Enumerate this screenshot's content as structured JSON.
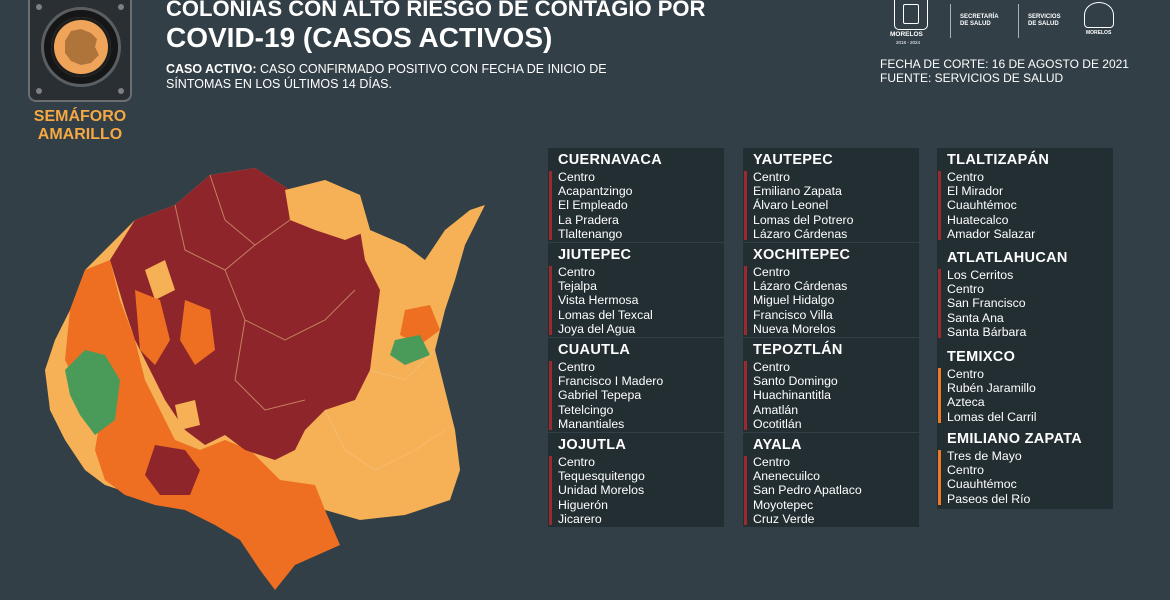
{
  "header": {
    "title_line1": "Colonias con alto riesgo de contagio por",
    "title_line2": "COVID-19 (casos activos)",
    "definition_label": "Caso activo:",
    "definition_text": "caso confirmado positivo con fecha de inicio de síntomas en los últimos 14 días.",
    "cutoff": "Fecha de corte: 16 de agosto de 2021",
    "source": "Fuente: Servicios de Salud"
  },
  "semaforo": {
    "label_line1": "Semáforo",
    "label_line2": "amarillo",
    "color": "#f5a843"
  },
  "logos": {
    "morelos": "Morelos",
    "morelos_years": "2018 - 2024",
    "secretaria": "Secretaría de Salud",
    "servicios": "Servicios de Salud",
    "flower": "Morelos"
  },
  "colors": {
    "dark_red": "#8e252b",
    "orange": "#ee6f22",
    "light_orange": "#f6b055",
    "green": "#4a9a5a",
    "background": "#323f46"
  },
  "municipalities": [
    {
      "name": "Cuernavaca",
      "risk": "red",
      "colonias": [
        "Centro",
        "Acapantzingo",
        "El Empleado",
        "La Pradera",
        "Tlaltenango"
      ]
    },
    {
      "name": "Jiutepec",
      "risk": "red",
      "colonias": [
        "Centro",
        "Tejalpa",
        "Vista Hermosa",
        "Lomas del Texcal",
        "Joya del Agua"
      ]
    },
    {
      "name": "Cuautla",
      "risk": "red",
      "colonias": [
        "Centro",
        "Francisco I Madero",
        "Gabriel Tepepa",
        "Tetelcingo",
        "Manantiales"
      ]
    },
    {
      "name": "Jojutla",
      "risk": "red",
      "colonias": [
        "Centro",
        "Tequesquitengo",
        "Unidad Morelos",
        "Higuerón",
        "Jicarero"
      ]
    },
    {
      "name": "Yautepec",
      "risk": "red",
      "colonias": [
        "Centro",
        "Emiliano Zapata",
        "Álvaro Leonel",
        "Lomas del Potrero",
        "Lázaro Cárdenas"
      ]
    },
    {
      "name": "Xochitepec",
      "risk": "red",
      "colonias": [
        "Centro",
        "Lázaro Cárdenas",
        "Miguel Hidalgo",
        "Francisco Villa",
        "Nueva Morelos"
      ]
    },
    {
      "name": "Tepoztlán",
      "risk": "red",
      "colonias": [
        "Centro",
        "Santo Domingo",
        "Huachinantitla",
        "Amatlán",
        "Ocotitlán"
      ]
    },
    {
      "name": "Ayala",
      "risk": "red",
      "colonias": [
        "Centro",
        "Anenecuilco",
        "San Pedro Apatlaco",
        "Moyotepec",
        "Cruz Verde"
      ]
    },
    {
      "name": "Tlaltizapán",
      "risk": "red",
      "colonias": [
        "Centro",
        "El Mirador",
        "Cuauhtémoc",
        "Huatecalco",
        "Amador Salazar"
      ]
    },
    {
      "name": "Atlatlahucan",
      "risk": "red",
      "colonias": [
        "Los Cerritos",
        "Centro",
        "San Francisco",
        "Santa Ana",
        "Santa Bárbara"
      ]
    },
    {
      "name": "Temixco",
      "risk": "orange",
      "colonias": [
        "Centro",
        "Rubén Jaramillo",
        "Azteca",
        "Lomas del Carril"
      ]
    },
    {
      "name": "Emiliano Zapata",
      "risk": "orange",
      "colonias": [
        "Tres de Mayo",
        "Centro",
        "Cuauhtémoc",
        "Paseos del Río"
      ]
    }
  ]
}
